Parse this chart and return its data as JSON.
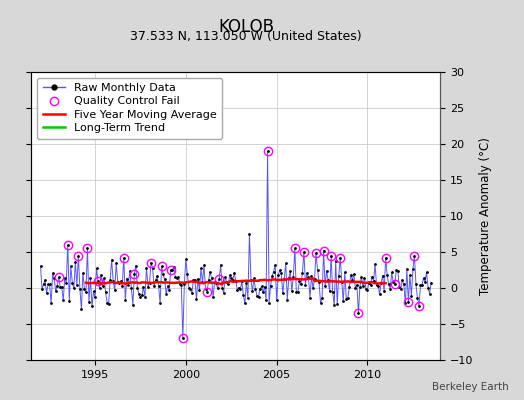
{
  "title": "KOLOB",
  "subtitle": "37.533 N, 113.050 W (United States)",
  "ylabel_right": "Temperature Anomaly (°C)",
  "watermark": "Berkeley Earth",
  "ylim": [
    -10,
    30
  ],
  "yticks": [
    -10,
    -5,
    0,
    5,
    10,
    15,
    20,
    25,
    30
  ],
  "xticks": [
    1995,
    2000,
    2005,
    2010
  ],
  "xlim": [
    1991.5,
    2014.0
  ],
  "raw_color": "#5555ff",
  "ma_color": "#ff0000",
  "trend_color": "#00cc00",
  "qc_color": "#ff00ff",
  "background_color": "#d8d8d8",
  "plot_bg_color": "#ffffff",
  "title_fontsize": 12,
  "subtitle_fontsize": 9,
  "legend_fontsize": 8,
  "grid_color": "#cccccc"
}
